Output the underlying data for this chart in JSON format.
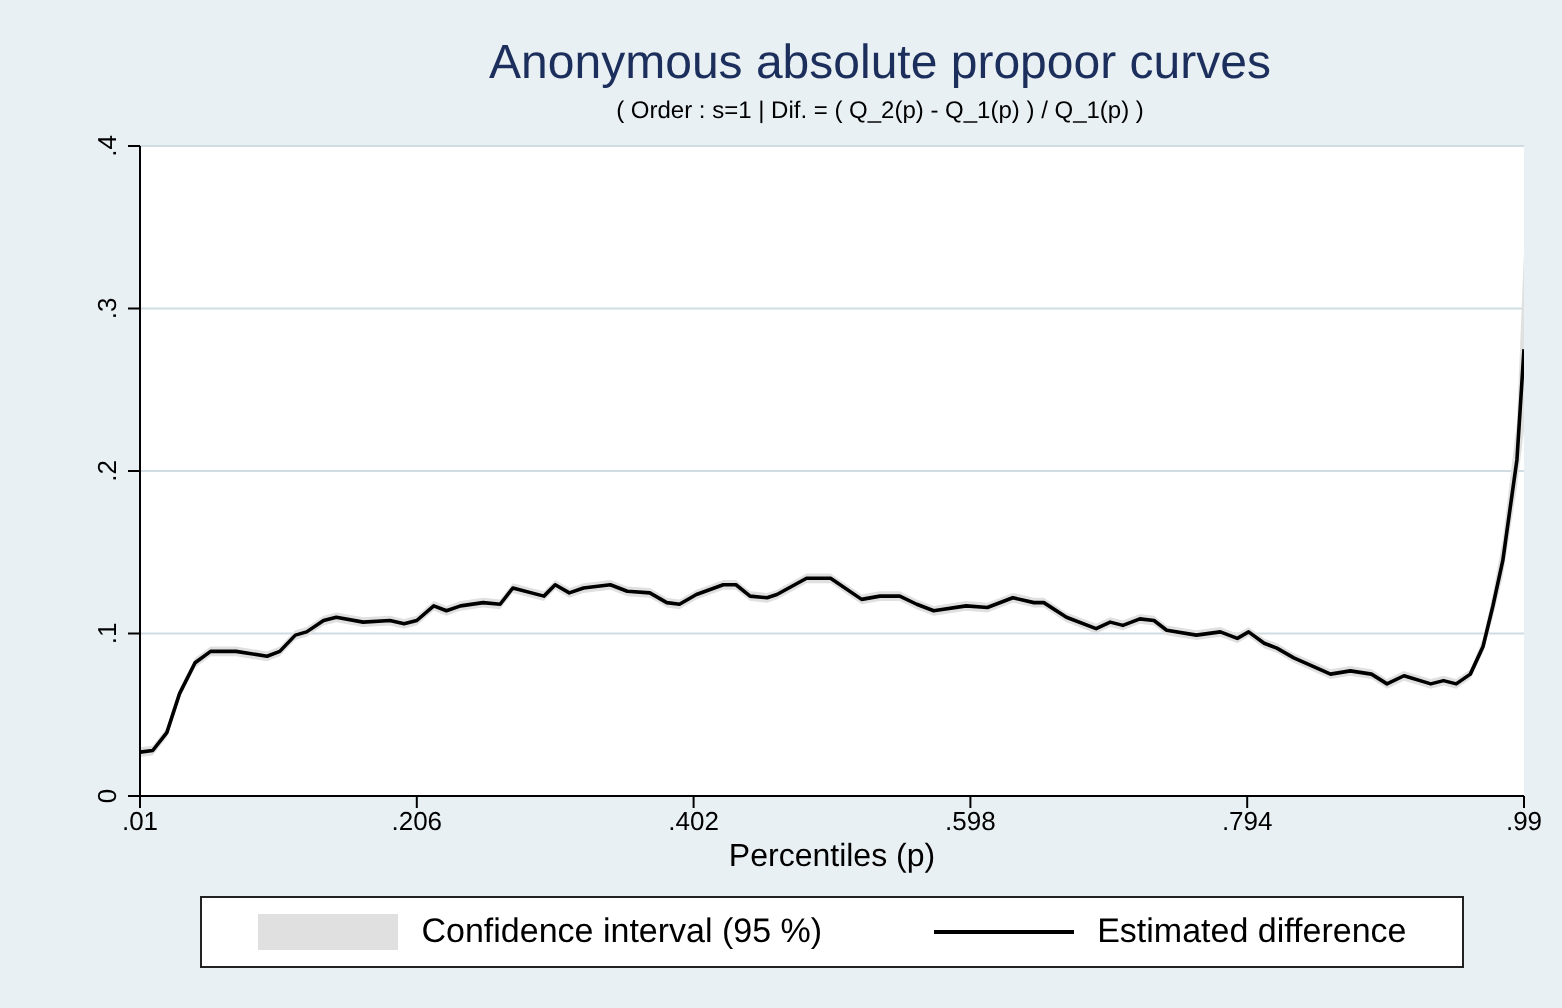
{
  "chart_data": {
    "type": "line",
    "title": "Anonymous absolute propoor curves",
    "subtitle": "( Order : s=1 | Dif. = ( Q_2(p) - Q_1(p) ) / Q_1(p) )",
    "xlabel": "Percentiles (p)",
    "annotations": [
      "Confidence interval (95 %)"
    ],
    "xlim": [
      0.01,
      0.99
    ],
    "xticks": [
      {
        "value": 0.01,
        "label": ".01"
      },
      {
        "value": 0.206,
        "label": ".206"
      },
      {
        "value": 0.402,
        "label": ".402"
      },
      {
        "value": 0.598,
        "label": ".598"
      },
      {
        "value": 0.794,
        "label": ".794"
      },
      {
        "value": 0.99,
        "label": ".99"
      }
    ],
    "ylim": [
      0,
      0.4
    ],
    "yticks": [
      0,
      {
        "value": 0.1,
        "label": ".1"
      },
      {
        "value": 0.2,
        "label": ".2"
      },
      {
        "value": 0.3,
        "label": ".3"
      },
      {
        "value": 0.4,
        "label": ".4"
      }
    ],
    "grid": "y",
    "legend": "bottom",
    "marker": "none",
    "line_style": "solid",
    "series": [
      {
        "name": "Estimated difference",
        "color": "#000000",
        "x": [
          0.01,
          0.019,
          0.029,
          0.038,
          0.049,
          0.06,
          0.078,
          0.1,
          0.109,
          0.12,
          0.128,
          0.14,
          0.149,
          0.168,
          0.187,
          0.197,
          0.206,
          0.218,
          0.227,
          0.237,
          0.253,
          0.265,
          0.274,
          0.296,
          0.304,
          0.314,
          0.324,
          0.343,
          0.355,
          0.371,
          0.383,
          0.392,
          0.404,
          0.423,
          0.432,
          0.442,
          0.454,
          0.461,
          0.482,
          0.499,
          0.521,
          0.534,
          0.548,
          0.56,
          0.572,
          0.595,
          0.61,
          0.628,
          0.643,
          0.65,
          0.666,
          0.687,
          0.697,
          0.706,
          0.718,
          0.728,
          0.737,
          0.758,
          0.775,
          0.787,
          0.795,
          0.806,
          0.815,
          0.827,
          0.853,
          0.867,
          0.882,
          0.893,
          0.905,
          0.924,
          0.933,
          0.942,
          0.952,
          0.961,
          0.968,
          0.975,
          0.985,
          0.99
        ],
        "values": [
          0.027,
          0.028,
          0.039,
          0.063,
          0.082,
          0.089,
          0.089,
          0.086,
          0.089,
          0.099,
          0.101,
          0.108,
          0.11,
          0.107,
          0.108,
          0.106,
          0.108,
          0.117,
          0.114,
          0.117,
          0.119,
          0.118,
          0.128,
          0.123,
          0.13,
          0.125,
          0.128,
          0.13,
          0.126,
          0.125,
          0.119,
          0.118,
          0.124,
          0.13,
          0.13,
          0.123,
          0.122,
          0.124,
          0.134,
          0.134,
          0.121,
          0.123,
          0.123,
          0.118,
          0.114,
          0.117,
          0.116,
          0.122,
          0.119,
          0.119,
          0.11,
          0.103,
          0.107,
          0.105,
          0.109,
          0.108,
          0.102,
          0.099,
          0.101,
          0.097,
          0.101,
          0.094,
          0.091,
          0.085,
          0.075,
          0.077,
          0.075,
          0.069,
          0.074,
          0.069,
          0.071,
          0.069,
          0.075,
          0.092,
          0.117,
          0.145,
          0.207,
          0.275
        ],
        "lower": [
          0.024,
          0.025,
          0.036,
          0.06,
          0.079,
          0.086,
          0.086,
          0.083,
          0.086,
          0.096,
          0.098,
          0.105,
          0.107,
          0.104,
          0.105,
          0.103,
          0.105,
          0.114,
          0.111,
          0.114,
          0.116,
          0.115,
          0.125,
          0.12,
          0.127,
          0.122,
          0.125,
          0.127,
          0.123,
          0.122,
          0.116,
          0.115,
          0.121,
          0.127,
          0.127,
          0.12,
          0.119,
          0.121,
          0.131,
          0.131,
          0.118,
          0.12,
          0.12,
          0.115,
          0.111,
          0.114,
          0.113,
          0.119,
          0.116,
          0.116,
          0.107,
          0.1,
          0.104,
          0.102,
          0.106,
          0.105,
          0.099,
          0.096,
          0.098,
          0.094,
          0.098,
          0.091,
          0.088,
          0.082,
          0.072,
          0.074,
          0.072,
          0.066,
          0.071,
          0.066,
          0.068,
          0.066,
          0.072,
          0.088,
          0.11,
          0.135,
          0.19,
          0.225
        ],
        "upper": [
          0.03,
          0.031,
          0.042,
          0.066,
          0.085,
          0.092,
          0.092,
          0.089,
          0.092,
          0.102,
          0.104,
          0.111,
          0.113,
          0.11,
          0.111,
          0.109,
          0.111,
          0.12,
          0.117,
          0.12,
          0.122,
          0.121,
          0.131,
          0.126,
          0.133,
          0.128,
          0.131,
          0.133,
          0.129,
          0.128,
          0.122,
          0.121,
          0.127,
          0.133,
          0.133,
          0.126,
          0.125,
          0.127,
          0.137,
          0.137,
          0.124,
          0.126,
          0.126,
          0.121,
          0.117,
          0.12,
          0.119,
          0.125,
          0.122,
          0.122,
          0.113,
          0.106,
          0.11,
          0.108,
          0.112,
          0.111,
          0.105,
          0.102,
          0.104,
          0.1,
          0.104,
          0.097,
          0.094,
          0.088,
          0.078,
          0.08,
          0.078,
          0.072,
          0.077,
          0.072,
          0.074,
          0.072,
          0.078,
          0.097,
          0.125,
          0.158,
          0.23,
          0.335
        ]
      }
    ]
  }
}
